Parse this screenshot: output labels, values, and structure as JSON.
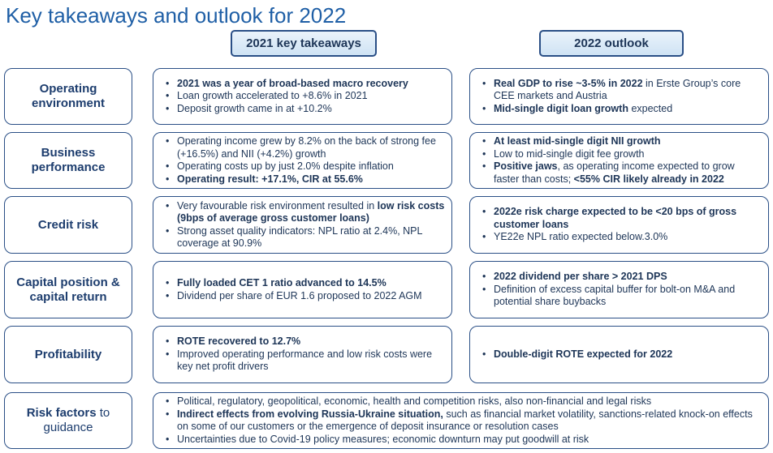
{
  "title": "Key takeaways and outlook for 2022",
  "headers": {
    "left": "2021 key takeaways",
    "right": "2022 outlook"
  },
  "rows": [
    {
      "label": "Operating environment",
      "left": [
        [
          {
            "t": "2021 was a year of broad-based macro recovery",
            "b": true
          }
        ],
        [
          {
            "t": "Loan growth accelerated to +8.6% in 2021",
            "b": false
          }
        ],
        [
          {
            "t": "Deposit growth came in at +10.2%",
            "b": false
          }
        ]
      ],
      "right": [
        [
          {
            "t": "Real GDP to rise ~3-5% in 2022",
            "b": true
          },
          {
            "t": " in Erste Group’s core CEE markets and Austria",
            "b": false
          }
        ],
        [
          {
            "t": "Mid-single digit loan growth",
            "b": true
          },
          {
            "t": " expected",
            "b": false
          }
        ]
      ]
    },
    {
      "label": "Business performance",
      "left": [
        [
          {
            "t": "Operating income grew by 8.2% on the back of strong fee (+16.5%) and NII (+4.2%) growth",
            "b": false
          }
        ],
        [
          {
            "t": "Operating costs up by just 2.0% despite inflation",
            "b": false
          }
        ],
        [
          {
            "t": "Operating result: +17.1%, CIR at 55.6%",
            "b": true
          }
        ]
      ],
      "right": [
        [
          {
            "t": "At least mid-single digit NII growth",
            "b": true
          }
        ],
        [
          {
            "t": "Low to mid-single digit fee growth",
            "b": false
          }
        ],
        [
          {
            "t": "Positive jaws",
            "b": true
          },
          {
            "t": ", as operating income expected to grow faster than costs; ",
            "b": false
          },
          {
            "t": "<55% CIR likely already in 2022",
            "b": true
          }
        ]
      ]
    },
    {
      "label": "Credit risk",
      "left": [
        [
          {
            "t": "Very favourable risk environment resulted in ",
            "b": false
          },
          {
            "t": "low risk costs (9bps of average gross customer loans)",
            "b": true
          }
        ],
        [
          {
            "t": "Strong asset quality indicators: NPL ratio at 2.4%, NPL coverage at 90.9%",
            "b": false
          }
        ]
      ],
      "right": [
        [
          {
            "t": "2022e risk charge expected to be <20 bps of gross customer loans",
            "b": true
          }
        ],
        [
          {
            "t": "YE22e NPL ratio expected below.3.0%",
            "b": false
          }
        ]
      ]
    },
    {
      "label": "Capital position & capital return",
      "left": [
        [
          {
            "t": "Fully loaded CET 1 ratio advanced to 14.5%",
            "b": true
          }
        ],
        [
          {
            "t": "Dividend per share of EUR 1.6 proposed to 2022 AGM",
            "b": false
          }
        ]
      ],
      "right": [
        [
          {
            "t": "2022 dividend per share > 2021 DPS",
            "b": true
          }
        ],
        [
          {
            "t": "Definition of excess capital buffer for bolt-on M&A and potential share buybacks",
            "b": false
          }
        ]
      ]
    },
    {
      "label": "Profitability",
      "left": [
        [
          {
            "t": "ROTE recovered to 12.7%",
            "b": true
          }
        ],
        [
          {
            "t": "Improved operating performance and low risk costs were key net profit drivers",
            "b": false
          }
        ]
      ],
      "right": [
        [
          {
            "t": "Double-digit ROTE expected for 2022",
            "b": true
          }
        ]
      ]
    }
  ],
  "risk": {
    "label_bold": "Risk factors",
    "label_rest": " to guidance",
    "items": [
      [
        {
          "t": "Political, regulatory, geopolitical, economic, health  and competition risks, also non-financial and legal risks",
          "b": false
        }
      ],
      [
        {
          "t": "Indirect effects from evolving Russia-Ukraine situation,",
          "b": true
        },
        {
          "t": " such as financial market volatility, sanctions-related knock-on effects on some of our customers or the emergence of deposit insurance or resolution cases",
          "b": false
        }
      ],
      [
        {
          "t": "Uncertainties due to Covid-19 policy measures; economic downturn may put goodwill at risk",
          "b": false
        }
      ]
    ]
  }
}
